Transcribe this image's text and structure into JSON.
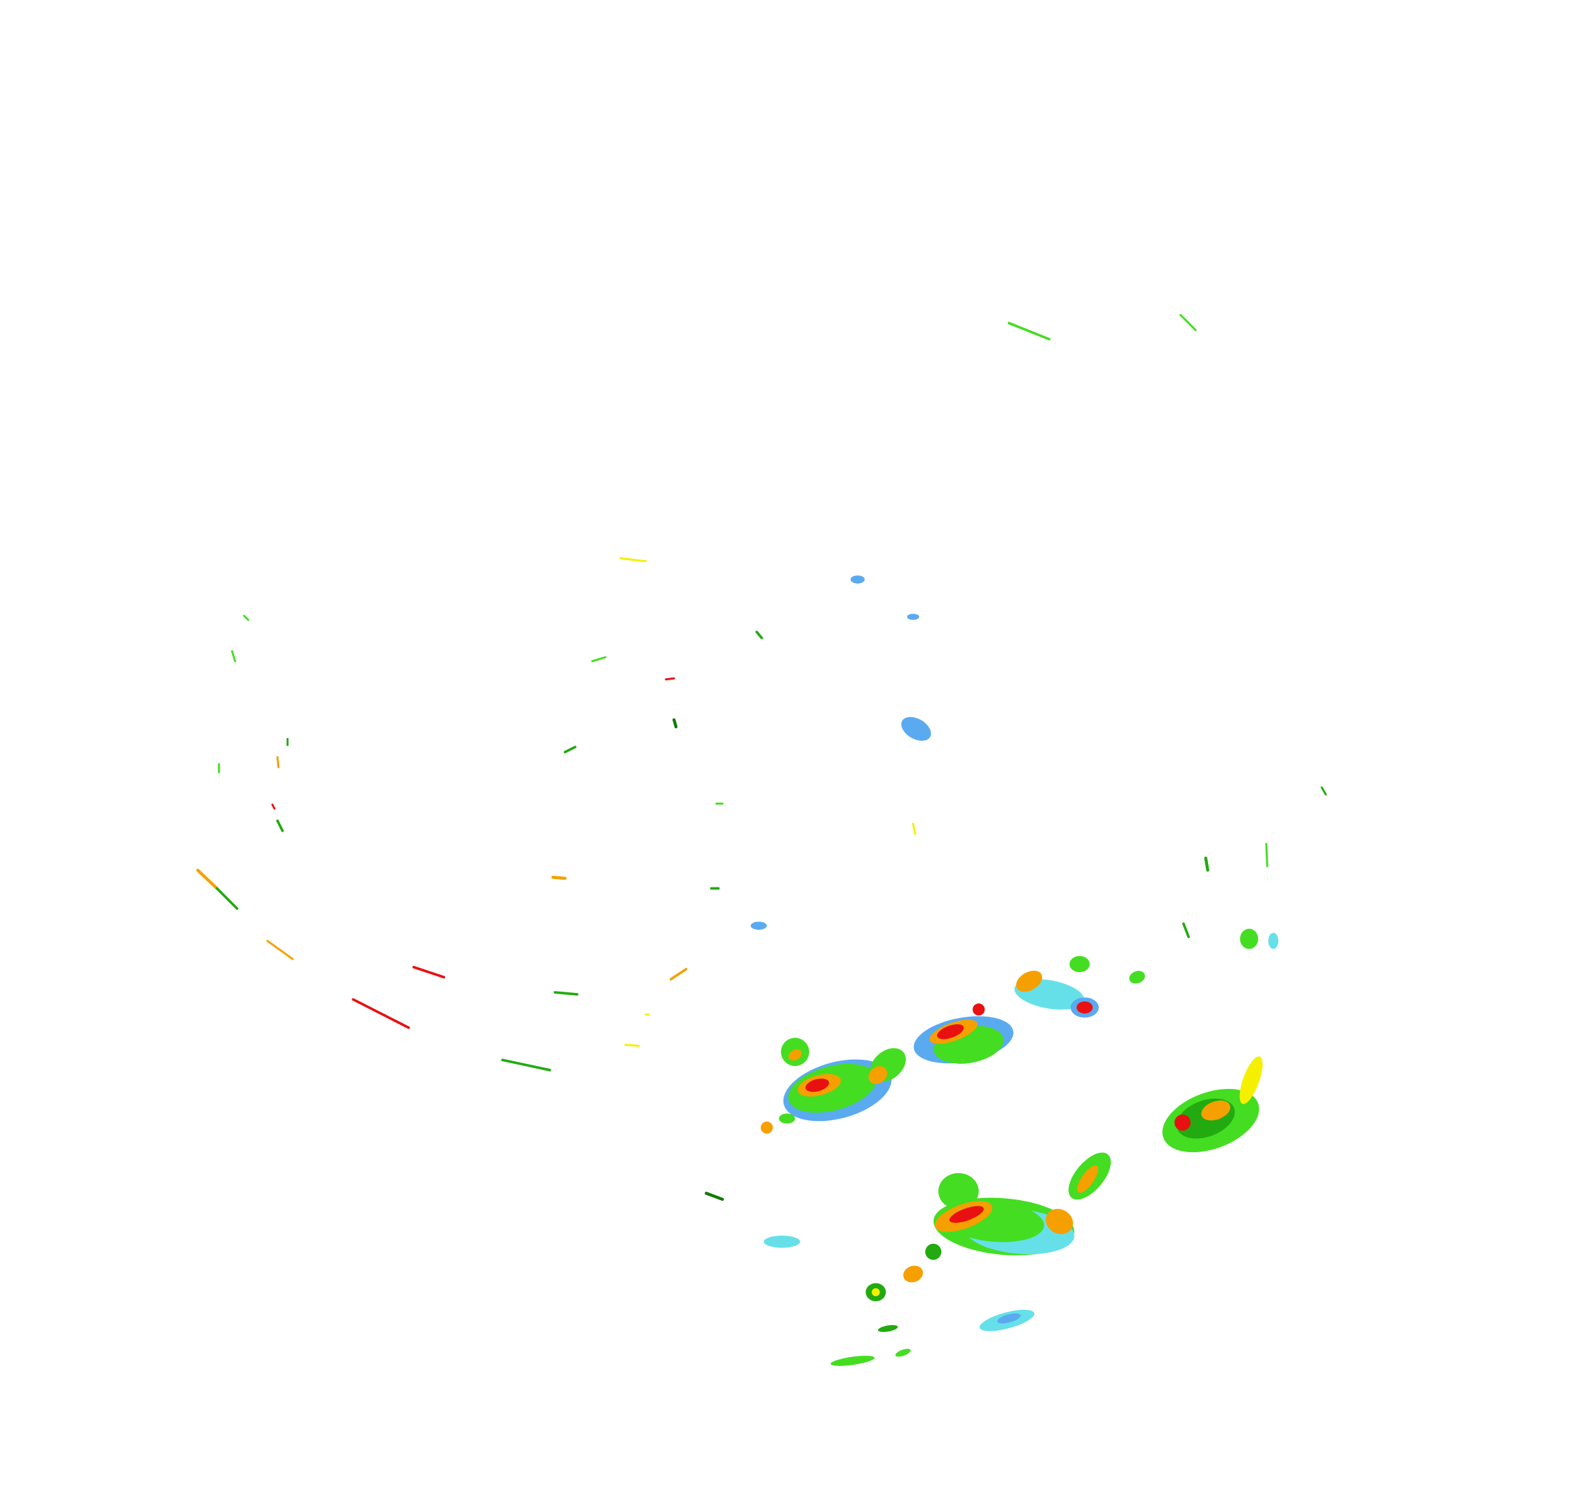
{
  "radar": {
    "background": "#ffffff",
    "palette": {
      "light_blue": "#5aaaf0",
      "cyan": "#66e0e8",
      "light_green": "#44dd22",
      "green": "#22aa10",
      "dark_green": "#117a08",
      "yellow": "#f5f000",
      "orange": "#f5a000",
      "red": "#e81010"
    }
  }
}
